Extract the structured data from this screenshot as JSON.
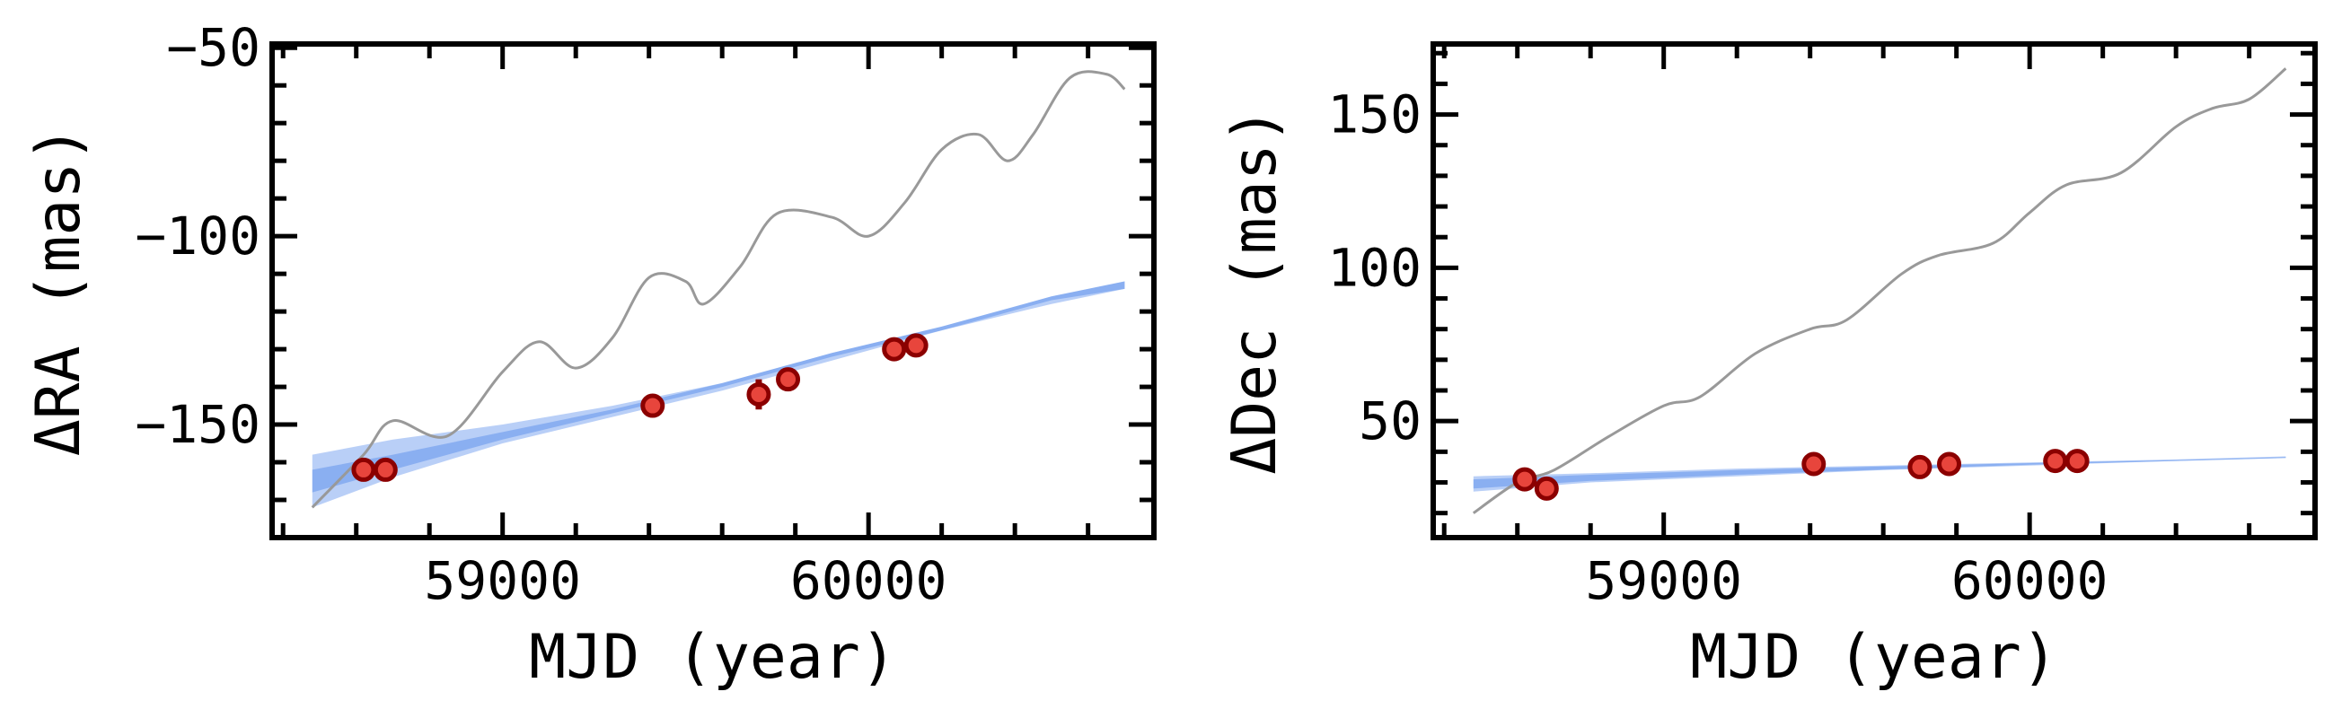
{
  "chart_data": [
    {
      "type": "scatter",
      "title": "",
      "xlabel": "MJD (year)",
      "ylabel": "ΔRA (mas)",
      "xlim": [
        58370,
        60780
      ],
      "ylim": [
        -180,
        -49
      ],
      "x_ticks": [
        59000,
        60000
      ],
      "x_tick_labels": [
        "59000",
        "60000"
      ],
      "y_ticks": [
        -150,
        -100,
        -50
      ],
      "y_tick_labels": [
        "−150",
        "−100",
        "−50"
      ],
      "grid": false,
      "colors": {
        "points": "#e8453c",
        "point_edge": "#8b0000",
        "band": "#6495ed",
        "track": "#999999"
      },
      "points": [
        {
          "x": 58620,
          "y": -162,
          "err": 1
        },
        {
          "x": 58680,
          "y": -162,
          "err": 1
        },
        {
          "x": 59410,
          "y": -145,
          "err": 1
        },
        {
          "x": 59700,
          "y": -142,
          "err": 4
        },
        {
          "x": 59780,
          "y": -138,
          "err": 1
        },
        {
          "x": 60070,
          "y": -130,
          "err": 1
        },
        {
          "x": 60130,
          "y": -129,
          "err": 1
        }
      ],
      "band": {
        "x": [
          58480,
          58700,
          59000,
          59300,
          59600,
          59900,
          60200,
          60500,
          60700
        ],
        "lower": [
          -172,
          -164,
          -155,
          -148,
          -141,
          -133,
          -125,
          -118,
          -114
        ],
        "upper": [
          -158,
          -154,
          -150,
          -145,
          -139,
          -131,
          -124,
          -116,
          -112
        ],
        "core_lower": [
          -168,
          -162,
          -154,
          -147,
          -140,
          -132,
          -125,
          -117,
          -114
        ],
        "core_upper": [
          -162,
          -158,
          -152,
          -146,
          -139,
          -131,
          -124,
          -116,
          -112
        ]
      },
      "track": {
        "x": [
          58480,
          58620,
          58700,
          58850,
          59000,
          59100,
          59200,
          59300,
          59400,
          59500,
          59550,
          59650,
          59750,
          59900,
          60000,
          60100,
          60200,
          60300,
          60380,
          60450,
          60550,
          60650,
          60700
        ],
        "y": [
          -172,
          -158,
          -149,
          -153,
          -136,
          -128,
          -135,
          -127,
          -111,
          -112,
          -118,
          -108,
          -94,
          -95,
          -100,
          -91,
          -77,
          -73,
          -80,
          -73,
          -58,
          -57,
          -61
        ]
      }
    },
    {
      "type": "scatter",
      "title": "",
      "xlabel": "MJD (year)",
      "ylabel": "ΔDec (mas)",
      "xlim": [
        58370,
        60780
      ],
      "ylim": [
        12,
        173
      ],
      "x_ticks": [
        59000,
        60000
      ],
      "x_tick_labels": [
        "59000",
        "60000"
      ],
      "y_ticks": [
        50,
        100,
        150
      ],
      "y_tick_labels": [
        "50",
        "100",
        "150"
      ],
      "grid": false,
      "colors": {
        "points": "#e8453c",
        "point_edge": "#8b0000",
        "band": "#6495ed",
        "track": "#999999"
      },
      "points": [
        {
          "x": 58620,
          "y": 31,
          "err": 1
        },
        {
          "x": 58680,
          "y": 28,
          "err": 1
        },
        {
          "x": 59410,
          "y": 36,
          "err": 1
        },
        {
          "x": 59700,
          "y": 35,
          "err": 1
        },
        {
          "x": 59780,
          "y": 36,
          "err": 1
        },
        {
          "x": 60070,
          "y": 37,
          "err": 1
        },
        {
          "x": 60130,
          "y": 37,
          "err": 1
        }
      ],
      "band": {
        "x": [
          58480,
          58800,
          59200,
          59600,
          60000,
          60400,
          60700
        ],
        "lower": [
          27,
          30,
          32,
          34,
          35.5,
          37,
          38
        ],
        "upper": [
          32,
          33,
          34.5,
          35.5,
          36.5,
          37.5,
          38.5
        ],
        "core_lower": [
          28,
          30.5,
          32.5,
          34.2,
          35.8,
          37,
          38
        ],
        "core_upper": [
          31,
          32.5,
          34,
          35.2,
          36.3,
          37.3,
          38.3
        ]
      },
      "track": {
        "x": [
          58480,
          58600,
          58700,
          58850,
          59000,
          59100,
          59250,
          59400,
          59500,
          59650,
          59750,
          59900,
          60000,
          60100,
          60250,
          60400,
          60500,
          60600,
          60700
        ],
        "y": [
          20,
          30,
          34,
          45,
          55,
          58,
          72,
          80,
          83,
          98,
          104,
          108,
          118,
          127,
          131,
          146,
          152,
          155,
          165
        ]
      }
    }
  ]
}
